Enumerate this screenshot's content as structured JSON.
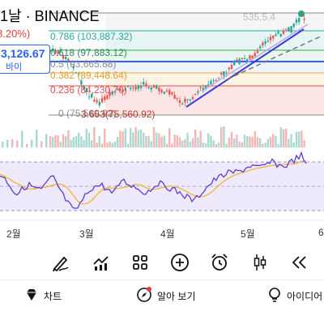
{
  "header": {
    "title": "1날 · BINANCE",
    "change_pct": "8.20%)",
    "price": "3,126.67",
    "buy_label": "바이",
    "top_right_price": "535,5.4"
  },
  "fib_levels": [
    {
      "ratio": "0.786",
      "price": "(103,887.32)"
    },
    {
      "ratio": "0.618",
      "price": "(97,883.12)"
    },
    {
      "ratio": "0.5",
      "price": "(93,665.88)"
    },
    {
      "ratio": "0.382",
      "price": "(89,448.64)"
    },
    {
      "ratio": "0.236",
      "price": "(84,230.70)"
    },
    {
      "ratio": "0",
      "price": "(75,560.92)"
    }
  ],
  "overlap_label": "3.653(75,560.92)",
  "months": [
    "2월",
    "3월",
    "4월",
    "5월",
    "6"
  ],
  "toolbar": [
    "pen-icon",
    "indicator-icon",
    "grid-icon",
    "plus-circle-icon",
    "alarm-icon",
    "candles-icon",
    "rewind-icon"
  ],
  "bottom_nav": [
    {
      "icon": "chart-gem-icon",
      "label": "차트"
    },
    {
      "icon": "compass-icon",
      "label": "알아 보기"
    },
    {
      "icon": "idea-icon",
      "label": "아이디어"
    }
  ],
  "colors": {
    "up": "#26a69a",
    "down": "#ef5350",
    "accent": "#2962ff",
    "rsi": "#5b3fd6",
    "rsi_ma": "#f2b233"
  }
}
